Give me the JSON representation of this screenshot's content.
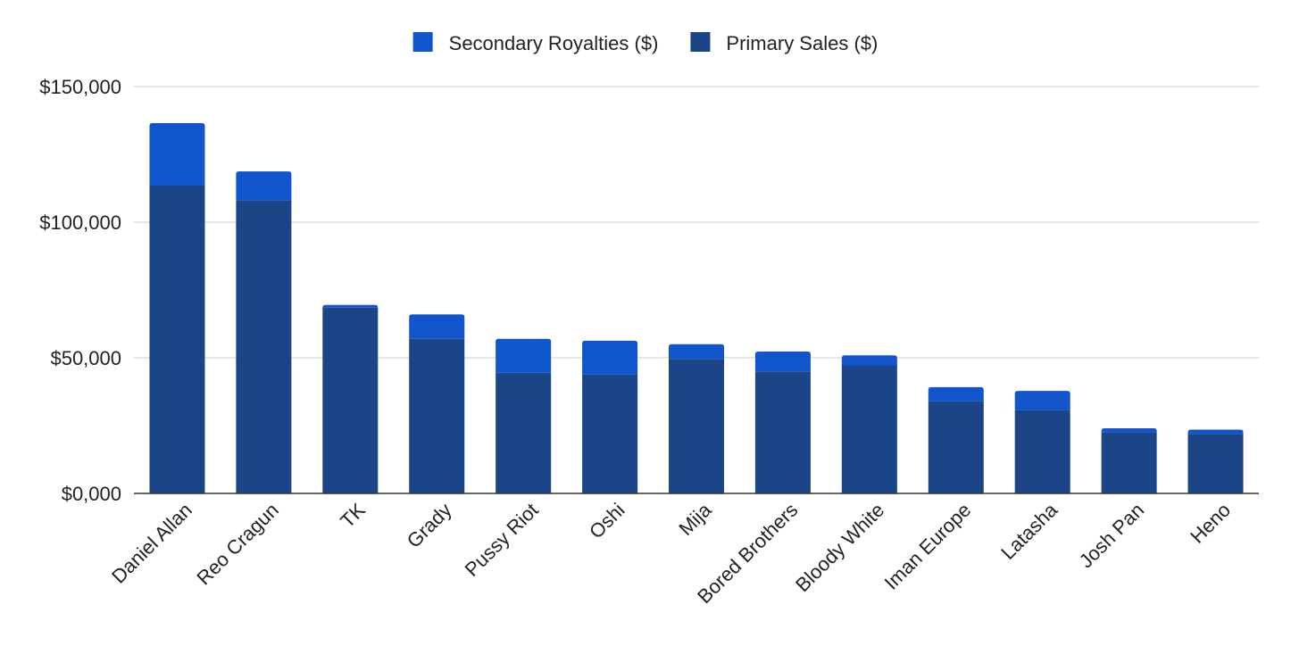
{
  "chart_data": {
    "type": "bar",
    "stacked": true,
    "title": "",
    "xlabel": "",
    "ylabel": "",
    "categories": [
      "Daniel Allan",
      "Reo Cragun",
      "TK",
      "Grady",
      "Pussy Riot",
      "Oshi",
      "Mija",
      "Bored Brothers",
      "Bloody White",
      "Iman Europe",
      "Latasha",
      "Josh Pan",
      "Heno"
    ],
    "series": [
      {
        "name": "Primary Sales ($)",
        "color": "#1c4587",
        "values": [
          113500,
          108000,
          68500,
          57000,
          44500,
          43800,
          49600,
          45000,
          47200,
          34000,
          30700,
          22500,
          22000
        ]
      },
      {
        "name": "Secondary Royalties ($)",
        "color": "#1155cc",
        "values": [
          23000,
          10700,
          1000,
          9000,
          12500,
          12500,
          5400,
          7300,
          3700,
          5200,
          7100,
          1500,
          1500
        ]
      }
    ],
    "legend": {
      "position": "top",
      "order": [
        "Secondary Royalties ($)",
        "Primary Sales ($)"
      ]
    },
    "yaxis": {
      "ylim": [
        0,
        150000
      ],
      "tick_values": [
        0,
        50000,
        100000,
        150000
      ],
      "tick_labels": [
        "$0,000",
        "$50,000",
        "$100,000",
        "$150,000"
      ]
    },
    "grid": true,
    "axis_color": "#333333",
    "grid_color": "#cccccc"
  }
}
